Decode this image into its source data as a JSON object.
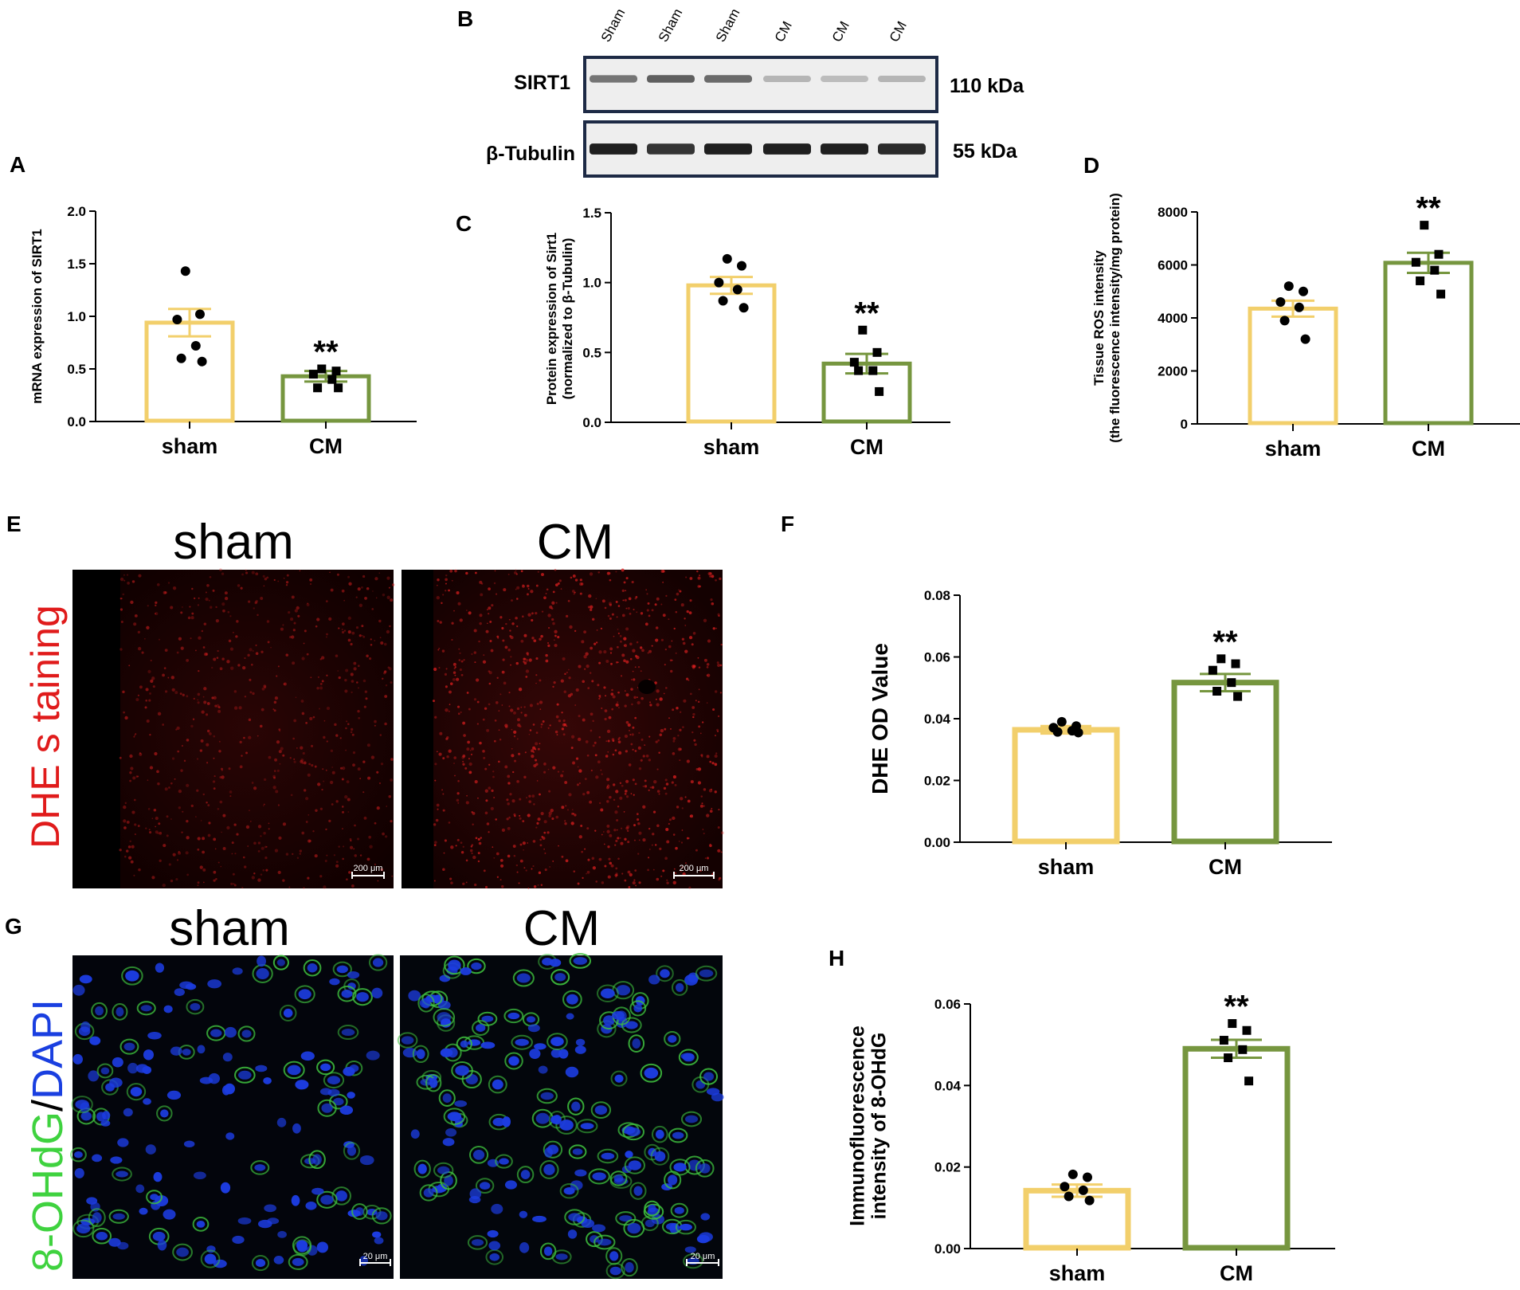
{
  "colors": {
    "sham": "#f2cf6b",
    "cm": "#76963f",
    "dhe_red": "#e01b1b",
    "green_stain": "#3fd23f",
    "blue_stain": "#1a3fe0"
  },
  "panel_labels": {
    "A": "A",
    "B": "B",
    "C": "C",
    "D": "D",
    "E": "E",
    "F": "F",
    "G": "G",
    "H": "H"
  },
  "blot": {
    "lanes": [
      "Sham",
      "Sham",
      "Sham",
      "CM",
      "CM",
      "CM"
    ],
    "rows": [
      {
        "protein": "SIRT1",
        "size": "110 kDa",
        "intensities": [
          0.55,
          0.65,
          0.6,
          0.25,
          0.22,
          0.25
        ]
      },
      {
        "protein": "β-Tubulin",
        "size": "55 kDa",
        "intensities": [
          0.95,
          0.85,
          0.95,
          0.95,
          0.95,
          0.9
        ]
      }
    ]
  },
  "images": {
    "dhe": {
      "side_label_1": "DHE",
      "side_label_2": "s taining",
      "titles": [
        "sham",
        "CM"
      ],
      "scale_bar": "200 μm"
    },
    "ohdg": {
      "side_label_1": "8-OHdG",
      "side_label_2": "/",
      "side_label_3": "DAPI",
      "titles": [
        "sham",
        "CM"
      ],
      "scale_bar": "20 μm"
    }
  },
  "chart_data": [
    {
      "id": "A",
      "type": "bar",
      "categories": [
        "sham",
        "CM"
      ],
      "values": [
        0.94,
        0.43
      ],
      "sem": [
        0.13,
        0.05
      ],
      "points": [
        [
          1.43,
          1.02,
          0.97,
          0.72,
          0.6,
          0.57
        ],
        [
          0.5,
          0.48,
          0.45,
          0.4,
          0.32,
          0.32
        ]
      ],
      "ylabel_lines": [
        "mRNA expression of SIRT1"
      ],
      "ylim": [
        0,
        2.0
      ],
      "ticks": [
        "0.0",
        "0.5",
        "1.0",
        "1.5",
        "2.0"
      ],
      "significance": "**"
    },
    {
      "id": "C",
      "type": "bar",
      "categories": [
        "sham",
        "CM"
      ],
      "values": [
        0.98,
        0.42
      ],
      "sem": [
        0.06,
        0.07
      ],
      "points": [
        [
          1.17,
          1.12,
          1.0,
          0.95,
          0.87,
          0.82
        ],
        [
          0.66,
          0.5,
          0.43,
          0.37,
          0.37,
          0.22
        ]
      ],
      "ylabel_lines": [
        "Protein expression of Sirt1",
        "(normalized to β-Tubulin)"
      ],
      "ylim": [
        0,
        1.5
      ],
      "ticks": [
        "0.0",
        "0.5",
        "1.0",
        "1.5"
      ],
      "significance": "**"
    },
    {
      "id": "D",
      "type": "bar",
      "categories": [
        "sham",
        "CM"
      ],
      "values": [
        4350,
        6080
      ],
      "sem": [
        300,
        380
      ],
      "points": [
        [
          5200,
          5000,
          4600,
          4400,
          3900,
          3200
        ],
        [
          7500,
          6400,
          6100,
          5800,
          5400,
          4900
        ]
      ],
      "ylabel_lines": [
        "Tissue ROS intensity",
        "(the fluorescence intensity/mg protein)"
      ],
      "ylim": [
        0,
        8000
      ],
      "ticks": [
        "0",
        "2000",
        "4000",
        "6000",
        "8000"
      ],
      "significance": "**"
    },
    {
      "id": "F",
      "type": "bar",
      "categories": [
        "sham",
        "CM"
      ],
      "values": [
        0.0364,
        0.0517
      ],
      "sem": [
        0.0012,
        0.0028
      ],
      "points": [
        [
          0.039,
          0.0376,
          0.0371,
          0.0361,
          0.0357,
          0.0355
        ],
        [
          0.0594,
          0.0578,
          0.0557,
          0.0517,
          0.0489,
          0.0472
        ]
      ],
      "ylabel_lines": [
        "DHE OD Value"
      ],
      "ylim": [
        0,
        0.08
      ],
      "ticks": [
        "0.00",
        "0.02",
        "0.04",
        "0.06",
        "0.08"
      ],
      "significance": "**"
    },
    {
      "id": "H",
      "type": "bar",
      "categories": [
        "sham",
        "CM"
      ],
      "values": [
        0.0142,
        0.049
      ],
      "sem": [
        0.0015,
        0.0022
      ],
      "points": [
        [
          0.0182,
          0.0175,
          0.0152,
          0.0143,
          0.0128,
          0.0118
        ],
        [
          0.0552,
          0.0535,
          0.0511,
          0.0488,
          0.0468,
          0.0411
        ]
      ],
      "ylabel_lines": [
        "Immunofluorescence",
        "intensity of 8-OHdG"
      ],
      "ylim": [
        0,
        0.06
      ],
      "ticks": [
        "0.00",
        "0.02",
        "0.04",
        "0.06"
      ],
      "significance": "**"
    }
  ]
}
